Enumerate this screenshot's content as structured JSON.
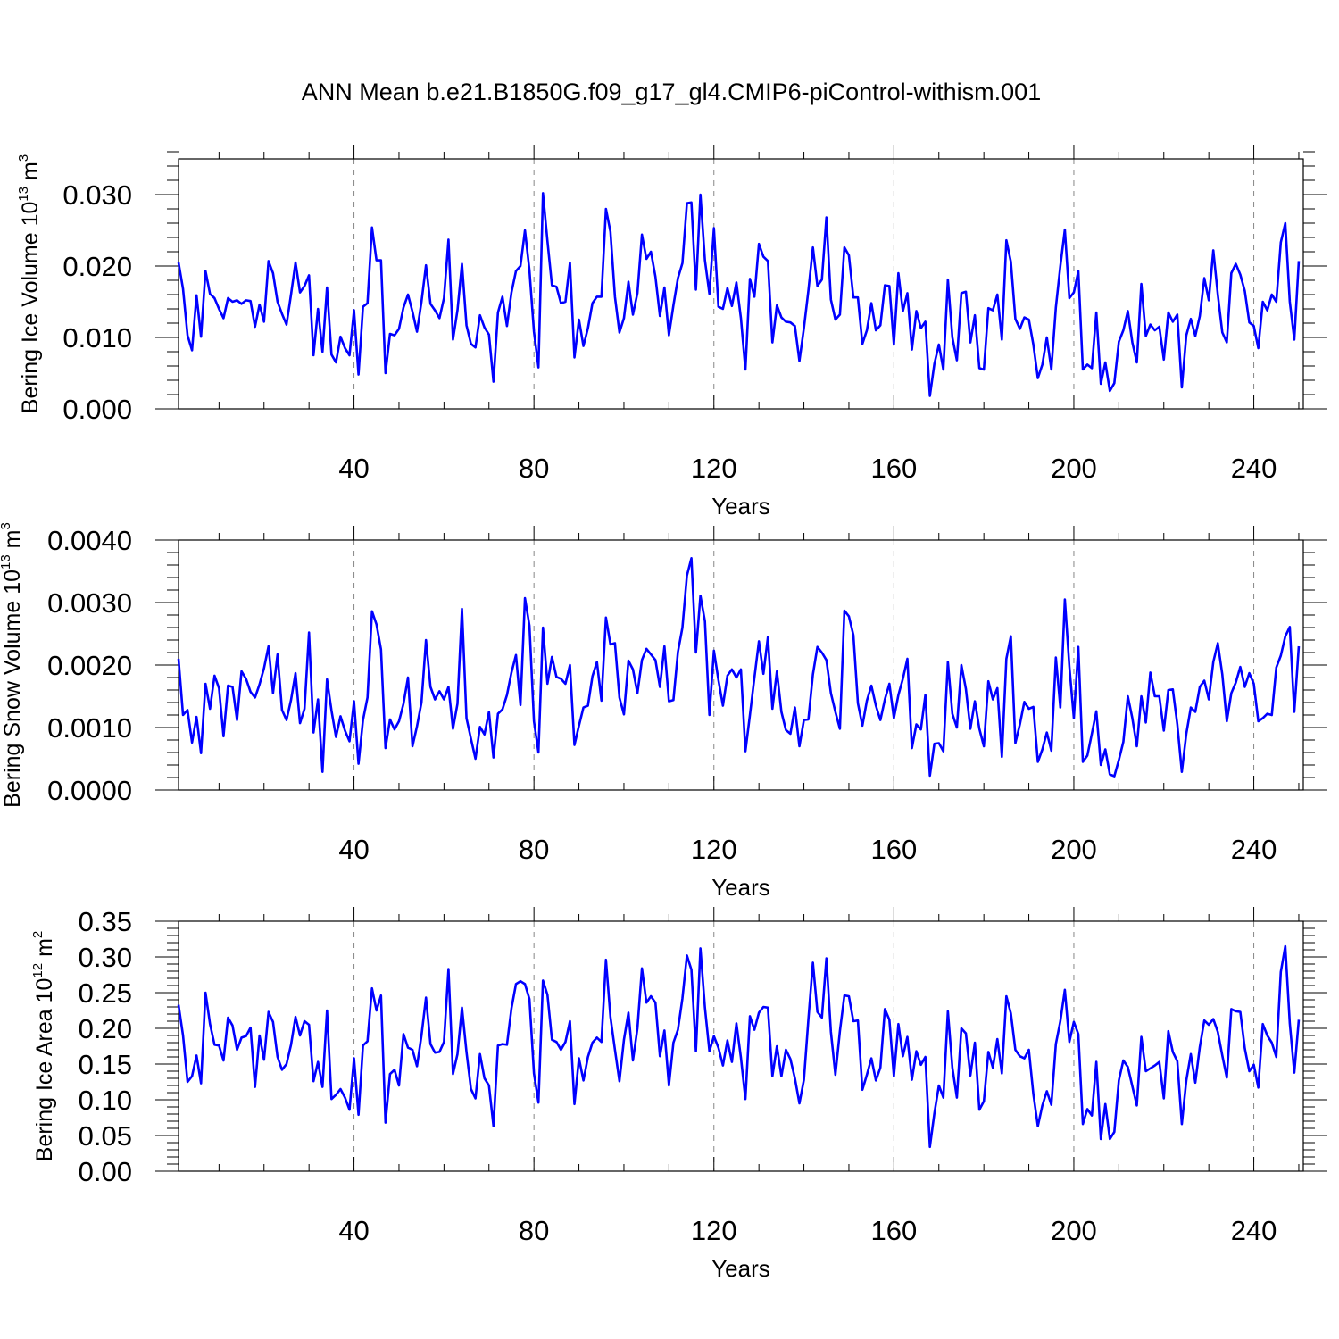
{
  "title": "ANN Mean b.e21.B1850G.f09_g17_gl4.CMIP6-piControl-withism.001",
  "chart_data": [
    {
      "type": "line",
      "ylabel_main": "Bering Ice Volume 10",
      "ylabel_exp": "13",
      "ylabel_unit": " m",
      "ylabel_unit_exp": "3",
      "xlabel": "Years",
      "xlim": [
        1,
        251
      ],
      "ylim": [
        0,
        0.035
      ],
      "xticks": [
        40,
        80,
        120,
        160,
        200,
        240
      ],
      "xtick_labels": [
        "40",
        "80",
        "120",
        "160",
        "200",
        "240"
      ],
      "yticks": [
        0,
        0.01,
        0.02,
        0.03
      ],
      "ytick_labels": [
        "0.000",
        "0.010",
        "0.020",
        "0.030"
      ],
      "grid": "vertical dashed",
      "series": [
        {
          "name": "Bering Ice Volume",
          "color": "#0000ff",
          "values": [
            0.0205,
            0.0168,
            0.0103,
            0.0082,
            0.0159,
            0.0101,
            0.0193,
            0.0161,
            0.0155,
            0.014,
            0.0127,
            0.0155,
            0.015,
            0.0152,
            0.0147,
            0.0152,
            0.0151,
            0.0115,
            0.0146,
            0.0122,
            0.0207,
            0.019,
            0.015,
            0.0133,
            0.0118,
            0.016,
            0.0205,
            0.0163,
            0.0172,
            0.0187,
            0.0075,
            0.014,
            0.008,
            0.017,
            0.0076,
            0.0065,
            0.0101,
            0.0085,
            0.0075,
            0.0138,
            0.0048,
            0.0143,
            0.0148,
            0.0254,
            0.0208,
            0.0208,
            0.005,
            0.0105,
            0.0103,
            0.0112,
            0.0142,
            0.016,
            0.0136,
            0.0108,
            0.015,
            0.0201,
            0.0147,
            0.0138,
            0.0127,
            0.0155,
            0.0237,
            0.0097,
            0.0138,
            0.0203,
            0.0117,
            0.0091,
            0.0086,
            0.0131,
            0.0114,
            0.0104,
            0.0038,
            0.0135,
            0.0157,
            0.0116,
            0.0163,
            0.0193,
            0.02,
            0.025,
            0.0194,
            0.0108,
            0.0058,
            0.0302,
            0.0235,
            0.0173,
            0.0171,
            0.0148,
            0.015,
            0.0205,
            0.0072,
            0.0125,
            0.0088,
            0.0113,
            0.0148,
            0.0157,
            0.0157,
            0.028,
            0.0248,
            0.0157,
            0.0107,
            0.0127,
            0.0178,
            0.0132,
            0.0162,
            0.0244,
            0.021,
            0.022,
            0.0185,
            0.013,
            0.017,
            0.0103,
            0.0145,
            0.0183,
            0.0204,
            0.0288,
            0.0289,
            0.0167,
            0.03,
            0.0208,
            0.0161,
            0.0253,
            0.0143,
            0.014,
            0.0169,
            0.0144,
            0.0177,
            0.0127,
            0.0055,
            0.0182,
            0.0157,
            0.0231,
            0.0213,
            0.0207,
            0.0093,
            0.0145,
            0.0128,
            0.0122,
            0.0121,
            0.0116,
            0.0067,
            0.0113,
            0.0166,
            0.0226,
            0.0172,
            0.0181,
            0.0268,
            0.0153,
            0.0125,
            0.0132,
            0.0226,
            0.0215,
            0.0156,
            0.0156,
            0.0091,
            0.011,
            0.0148,
            0.011,
            0.0117,
            0.0173,
            0.0172,
            0.009,
            0.019,
            0.0137,
            0.0162,
            0.0083,
            0.0137,
            0.0113,
            0.0122,
            0.0018,
            0.0063,
            0.009,
            0.0055,
            0.0181,
            0.01,
            0.0068,
            0.0162,
            0.0164,
            0.0093,
            0.0131,
            0.0057,
            0.0055,
            0.0141,
            0.0138,
            0.016,
            0.0097,
            0.0236,
            0.0206,
            0.0126,
            0.0112,
            0.0128,
            0.0125,
            0.009,
            0.0043,
            0.0062,
            0.01,
            0.0055,
            0.0142,
            0.02,
            0.0251,
            0.0155,
            0.0163,
            0.0193,
            0.0055,
            0.0062,
            0.0057,
            0.0135,
            0.0035,
            0.0065,
            0.0025,
            0.0036,
            0.0094,
            0.011,
            0.0137,
            0.0093,
            0.0065,
            0.0175,
            0.0102,
            0.0118,
            0.011,
            0.0115,
            0.0069,
            0.0135,
            0.0122,
            0.0132,
            0.003,
            0.0103,
            0.0126,
            0.0102,
            0.013,
            0.0183,
            0.0152,
            0.0222,
            0.016,
            0.0107,
            0.0093,
            0.019,
            0.0203,
            0.0188,
            0.0165,
            0.0121,
            0.0116,
            0.0085,
            0.015,
            0.0138,
            0.016,
            0.015,
            0.0233,
            0.026,
            0.015,
            0.0097,
            0.0207
          ]
        }
      ]
    },
    {
      "type": "line",
      "ylabel_main": "Bering Snow Volume 10",
      "ylabel_exp": "13",
      "ylabel_unit": " m",
      "ylabel_unit_exp": "3",
      "xlabel": "Years",
      "xlim": [
        1,
        251
      ],
      "ylim": [
        0,
        0.004
      ],
      "xticks": [
        40,
        80,
        120,
        160,
        200,
        240
      ],
      "xtick_labels": [
        "40",
        "80",
        "120",
        "160",
        "200",
        "240"
      ],
      "yticks": [
        0,
        0.001,
        0.002,
        0.003,
        0.004
      ],
      "ytick_labels": [
        "0.0000",
        "0.0010",
        "0.0020",
        "0.0030",
        "0.0040"
      ],
      "grid": "vertical dashed",
      "series": [
        {
          "name": "Bering Snow Volume",
          "color": "#0000ff",
          "values": [
            0.0021,
            0.0012,
            0.00128,
            0.00076,
            0.00117,
            0.00059,
            0.0017,
            0.0013,
            0.00183,
            0.00163,
            0.00086,
            0.00167,
            0.00165,
            0.00112,
            0.0019,
            0.00178,
            0.00157,
            0.00148,
            0.00169,
            0.00195,
            0.0023,
            0.00155,
            0.00217,
            0.00128,
            0.00112,
            0.00144,
            0.00187,
            0.00107,
            0.0013,
            0.00252,
            0.00092,
            0.00145,
            0.00029,
            0.00177,
            0.00127,
            0.00085,
            0.00118,
            0.00095,
            0.00078,
            0.00142,
            0.00042,
            0.00112,
            0.00148,
            0.00286,
            0.00265,
            0.00225,
            0.00067,
            0.00113,
            0.00097,
            0.0011,
            0.00138,
            0.0018,
            0.0007,
            0.00102,
            0.0014,
            0.0024,
            0.00165,
            0.00145,
            0.00158,
            0.00145,
            0.00165,
            0.00098,
            0.00138,
            0.0029,
            0.00115,
            0.00082,
            0.0005,
            0.00101,
            0.00089,
            0.00125,
            0.00052,
            0.00122,
            0.00129,
            0.00152,
            0.00188,
            0.00216,
            0.00136,
            0.00307,
            0.00263,
            0.0011,
            0.0006,
            0.0026,
            0.0017,
            0.00213,
            0.00181,
            0.00178,
            0.0017,
            0.002,
            0.00072,
            0.00103,
            0.00132,
            0.00135,
            0.00182,
            0.00205,
            0.00143,
            0.00276,
            0.00233,
            0.00235,
            0.00148,
            0.00121,
            0.00207,
            0.00193,
            0.00155,
            0.00208,
            0.00226,
            0.00217,
            0.00208,
            0.00165,
            0.0023,
            0.00142,
            0.00144,
            0.00221,
            0.0026,
            0.00343,
            0.00371,
            0.0022,
            0.00311,
            0.0027,
            0.0012,
            0.00223,
            0.00176,
            0.00135,
            0.00183,
            0.00193,
            0.0018,
            0.00193,
            0.00062,
            0.0012,
            0.0018,
            0.00238,
            0.00186,
            0.00245,
            0.0013,
            0.0019,
            0.00125,
            0.00096,
            0.0009,
            0.00132,
            0.0007,
            0.00112,
            0.00113,
            0.00185,
            0.00229,
            0.0022,
            0.00208,
            0.00155,
            0.00125,
            0.00098,
            0.00287,
            0.00278,
            0.00248,
            0.00139,
            0.00103,
            0.00143,
            0.00167,
            0.00135,
            0.00112,
            0.00145,
            0.0017,
            0.00115,
            0.00152,
            0.00178,
            0.0021,
            0.00067,
            0.00105,
            0.00097,
            0.00152,
            0.00023,
            0.00074,
            0.00075,
            0.00062,
            0.00205,
            0.00122,
            0.001,
            0.002,
            0.00162,
            0.00098,
            0.00142,
            0.00098,
            0.0007,
            0.00174,
            0.00145,
            0.00163,
            0.00053,
            0.0021,
            0.00246,
            0.00075,
            0.00105,
            0.00141,
            0.0013,
            0.00133,
            0.00045,
            0.00065,
            0.00092,
            0.00063,
            0.00212,
            0.00132,
            0.00305,
            0.00198,
            0.00115,
            0.00229,
            0.00045,
            0.00055,
            0.0009,
            0.00126,
            0.0004,
            0.00065,
            0.00025,
            0.00022,
            0.00048,
            0.00077,
            0.0015,
            0.00115,
            0.0007,
            0.0015,
            0.00108,
            0.00188,
            0.0015,
            0.0015,
            0.00095,
            0.0016,
            0.00161,
            0.00105,
            0.00029,
            0.0009,
            0.00132,
            0.00125,
            0.00165,
            0.00175,
            0.00145,
            0.00205,
            0.00235,
            0.00185,
            0.0011,
            0.00155,
            0.00172,
            0.00197,
            0.00165,
            0.00187,
            0.0017,
            0.0011,
            0.00115,
            0.00122,
            0.0012,
            0.00196,
            0.00215,
            0.00246,
            0.00261,
            0.00125,
            0.0023
          ]
        }
      ]
    },
    {
      "type": "line",
      "ylabel_main": "Bering Ice Area 10",
      "ylabel_exp": "12",
      "ylabel_unit": " m",
      "ylabel_unit_exp": "2",
      "xlabel": "Years",
      "xlim": [
        1,
        251
      ],
      "ylim": [
        0,
        0.35
      ],
      "xticks": [
        40,
        80,
        120,
        160,
        200,
        240
      ],
      "xtick_labels": [
        "40",
        "80",
        "120",
        "160",
        "200",
        "240"
      ],
      "yticks": [
        0,
        0.05,
        0.1,
        0.15,
        0.2,
        0.25,
        0.3,
        0.35
      ],
      "ytick_labels": [
        "0.00",
        "0.05",
        "0.10",
        "0.15",
        "0.20",
        "0.25",
        "0.30",
        "0.35"
      ],
      "grid": "vertical dashed",
      "series": [
        {
          "name": "Bering Ice Area",
          "color": "#0000ff",
          "values": [
            0.233,
            0.19,
            0.125,
            0.133,
            0.162,
            0.123,
            0.25,
            0.206,
            0.177,
            0.176,
            0.155,
            0.215,
            0.204,
            0.17,
            0.187,
            0.189,
            0.201,
            0.118,
            0.19,
            0.156,
            0.223,
            0.209,
            0.16,
            0.142,
            0.15,
            0.177,
            0.216,
            0.19,
            0.21,
            0.205,
            0.126,
            0.153,
            0.118,
            0.225,
            0.101,
            0.107,
            0.115,
            0.103,
            0.086,
            0.158,
            0.079,
            0.176,
            0.182,
            0.256,
            0.225,
            0.246,
            0.068,
            0.136,
            0.142,
            0.12,
            0.192,
            0.173,
            0.17,
            0.147,
            0.19,
            0.243,
            0.178,
            0.166,
            0.167,
            0.181,
            0.283,
            0.136,
            0.164,
            0.229,
            0.167,
            0.115,
            0.102,
            0.164,
            0.13,
            0.12,
            0.063,
            0.176,
            0.178,
            0.177,
            0.228,
            0.262,
            0.266,
            0.262,
            0.241,
            0.137,
            0.096,
            0.267,
            0.247,
            0.184,
            0.181,
            0.17,
            0.181,
            0.21,
            0.094,
            0.158,
            0.127,
            0.16,
            0.18,
            0.187,
            0.181,
            0.296,
            0.216,
            0.17,
            0.126,
            0.184,
            0.222,
            0.155,
            0.2,
            0.284,
            0.236,
            0.245,
            0.236,
            0.161,
            0.197,
            0.12,
            0.18,
            0.198,
            0.242,
            0.302,
            0.282,
            0.168,
            0.312,
            0.229,
            0.168,
            0.189,
            0.173,
            0.148,
            0.183,
            0.153,
            0.207,
            0.159,
            0.101,
            0.217,
            0.198,
            0.222,
            0.23,
            0.229,
            0.133,
            0.175,
            0.133,
            0.17,
            0.157,
            0.13,
            0.095,
            0.128,
            0.213,
            0.292,
            0.223,
            0.215,
            0.298,
            0.195,
            0.135,
            0.196,
            0.246,
            0.245,
            0.21,
            0.211,
            0.114,
            0.135,
            0.158,
            0.127,
            0.145,
            0.227,
            0.212,
            0.133,
            0.206,
            0.161,
            0.188,
            0.128,
            0.168,
            0.149,
            0.16,
            0.034,
            0.081,
            0.12,
            0.103,
            0.224,
            0.145,
            0.103,
            0.2,
            0.193,
            0.134,
            0.18,
            0.086,
            0.098,
            0.167,
            0.145,
            0.185,
            0.137,
            0.245,
            0.221,
            0.17,
            0.161,
            0.158,
            0.17,
            0.108,
            0.063,
            0.092,
            0.112,
            0.093,
            0.178,
            0.21,
            0.254,
            0.181,
            0.209,
            0.192,
            0.066,
            0.087,
            0.078,
            0.153,
            0.045,
            0.094,
            0.045,
            0.055,
            0.127,
            0.155,
            0.146,
            0.119,
            0.092,
            0.188,
            0.14,
            0.144,
            0.148,
            0.153,
            0.102,
            0.196,
            0.167,
            0.154,
            0.066,
            0.127,
            0.164,
            0.124,
            0.174,
            0.211,
            0.205,
            0.213,
            0.195,
            0.162,
            0.131,
            0.227,
            0.224,
            0.223,
            0.172,
            0.14,
            0.149,
            0.117,
            0.206,
            0.19,
            0.18,
            0.16,
            0.279,
            0.315,
            0.207,
            0.138,
            0.212
          ]
        }
      ]
    }
  ]
}
